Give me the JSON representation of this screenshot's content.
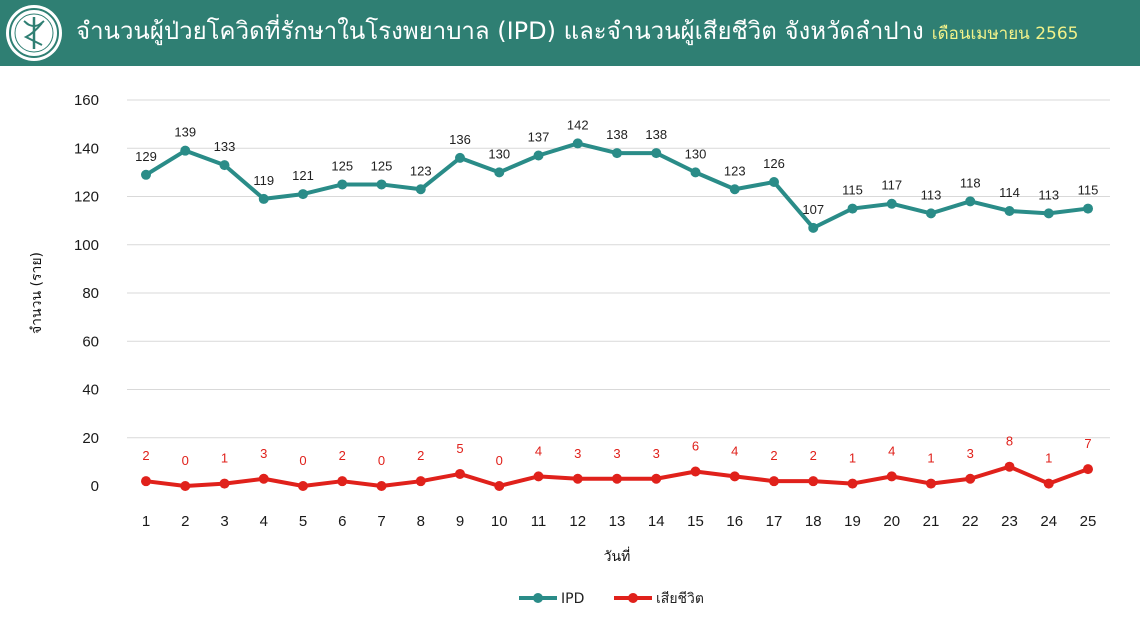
{
  "header": {
    "title": "จำนวนผู้ป่วยโควิดที่รักษาในโรงพยาบาล (IPD) และจำนวนผู้เสียชีวิต จังหวัดลำปาง",
    "subtitle": "เดือนเมษายน 2565",
    "background_color": "#2f7f73",
    "subtitle_color": "#f2f28a",
    "logo_icon": "ministry-of-public-health-seal"
  },
  "chart_data": {
    "type": "line",
    "title": "จำนวนผู้ป่วยโควิดที่รักษาในโรงพยาบาล (IPD) และจำนวนผู้เสียชีวิต จังหวัดลำปาง",
    "subtitle": "เดือนเมษายน 2565",
    "xlabel": "วันที่",
    "ylabel": "จำนวน (ราย)",
    "x": [
      1,
      2,
      3,
      4,
      5,
      6,
      7,
      8,
      9,
      10,
      11,
      12,
      13,
      14,
      15,
      16,
      17,
      18,
      19,
      20,
      21,
      22,
      23,
      24,
      25
    ],
    "ylim": [
      0,
      160
    ],
    "yticks": [
      0,
      20,
      40,
      60,
      80,
      100,
      120,
      140,
      160
    ],
    "grid": true,
    "legend_position": "bottom",
    "series": [
      {
        "name": "IPD",
        "color": "#2a8c88",
        "values": [
          129,
          139,
          133,
          119,
          121,
          125,
          125,
          123,
          136,
          130,
          137,
          142,
          138,
          138,
          130,
          123,
          126,
          107,
          115,
          117,
          113,
          118,
          114,
          113,
          115
        ]
      },
      {
        "name": "เสียชีวิต",
        "color": "#e0211b",
        "values": [
          2,
          0,
          1,
          3,
          0,
          2,
          0,
          2,
          5,
          0,
          4,
          3,
          3,
          3,
          6,
          4,
          2,
          2,
          1,
          4,
          1,
          3,
          8,
          1,
          7
        ]
      }
    ]
  }
}
